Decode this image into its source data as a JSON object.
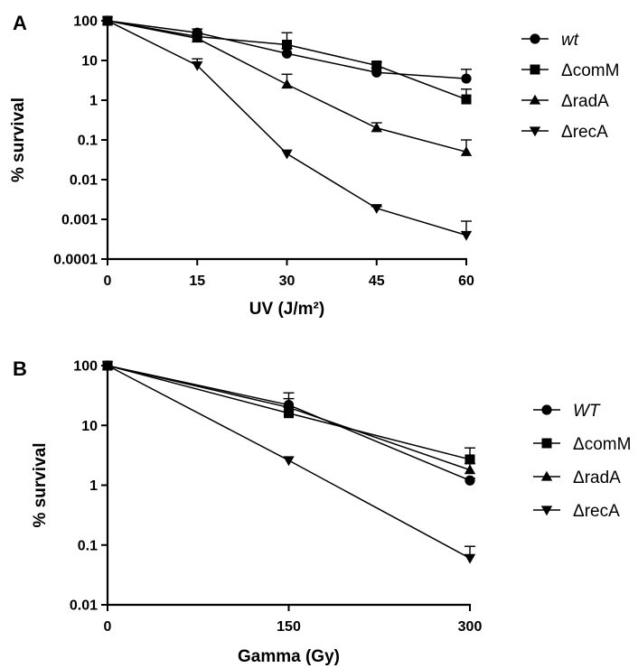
{
  "chart_data": [
    {
      "panel_label": "A",
      "type": "line",
      "xlabel": "UV (J/m²)",
      "ylabel": "% survival",
      "yscale": "log",
      "xlim": [
        0,
        60
      ],
      "ylim": [
        0.0001,
        100
      ],
      "x_ticks": [
        0,
        15,
        30,
        45,
        60
      ],
      "y_ticks": [
        {
          "value": 100,
          "label": "100"
        },
        {
          "value": 10,
          "label": "10"
        },
        {
          "value": 1,
          "label": "1"
        },
        {
          "value": 0.1,
          "label": "0.1"
        },
        {
          "value": 0.01,
          "label": "0.01"
        },
        {
          "value": 0.001,
          "label": "0.001"
        },
        {
          "value": 0.0001,
          "label": "0.0001"
        }
      ],
      "grid": false,
      "legend_position": "right",
      "x": [
        0,
        15,
        30,
        45,
        60
      ],
      "series": [
        {
          "name": "wt",
          "marker": "circle",
          "italic": true,
          "values": [
            100,
            50,
            15,
            5,
            3.5
          ],
          "err_upper": [
            null,
            62,
            20,
            6.5,
            6
          ]
        },
        {
          "name": "ΔcomM",
          "marker": "square",
          "italic": false,
          "values": [
            100,
            40,
            25,
            7.5,
            1.05
          ],
          "err_upper": [
            null,
            50,
            50,
            9,
            1.9
          ]
        },
        {
          "name": "ΔradA",
          "marker": "triangle-up",
          "italic": false,
          "values": [
            100,
            36,
            2.5,
            0.2,
            0.05
          ],
          "err_upper": [
            null,
            45,
            4.5,
            0.27,
            0.1
          ]
        },
        {
          "name": "ΔrecA",
          "marker": "triangle-down",
          "italic": false,
          "values": [
            100,
            7.5,
            0.045,
            0.0019,
            0.0004
          ],
          "err_upper": [
            null,
            11,
            null,
            0.0021,
            0.0009
          ]
        }
      ]
    },
    {
      "panel_label": "B",
      "type": "line",
      "xlabel": "Gamma (Gy)",
      "ylabel": "% survival",
      "yscale": "log",
      "xlim": [
        0,
        300
      ],
      "ylim": [
        0.01,
        100
      ],
      "x_ticks": [
        0,
        150,
        300
      ],
      "y_ticks": [
        {
          "value": 100,
          "label": "100"
        },
        {
          "value": 10,
          "label": "10"
        },
        {
          "value": 1,
          "label": "1"
        },
        {
          "value": 0.1,
          "label": "0.1"
        },
        {
          "value": 0.01,
          "label": "0.01"
        }
      ],
      "grid": false,
      "legend_position": "right",
      "x": [
        0,
        150,
        300
      ],
      "series": [
        {
          "name": "WT",
          "marker": "circle",
          "italic": true,
          "values": [
            100,
            22,
            1.2
          ],
          "err_upper": [
            null,
            35,
            1.3
          ]
        },
        {
          "name": "ΔcomM",
          "marker": "square",
          "italic": false,
          "values": [
            100,
            16,
            2.7
          ],
          "err_upper": [
            null,
            20,
            4.2
          ]
        },
        {
          "name": "ΔradA",
          "marker": "triangle-up",
          "italic": false,
          "values": [
            100,
            20,
            1.8
          ],
          "err_upper": [
            null,
            28,
            2.3
          ]
        },
        {
          "name": "ΔrecA",
          "marker": "triangle-down",
          "italic": false,
          "values": [
            100,
            2.6,
            0.06
          ],
          "err_upper": [
            null,
            null,
            0.095
          ]
        }
      ]
    }
  ]
}
